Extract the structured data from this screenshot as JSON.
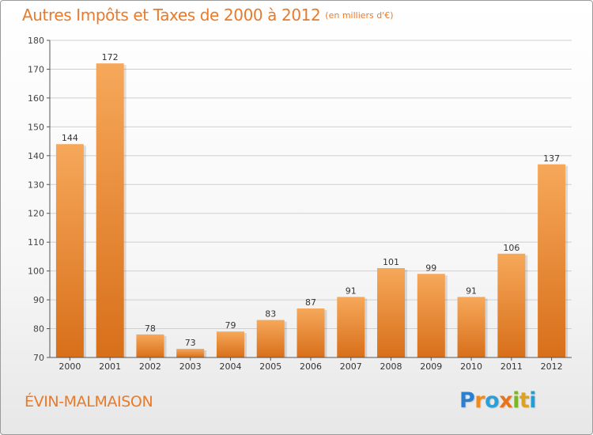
{
  "title": "Autres Impôts et Taxes de 2000 à 2012",
  "title_unit": "(en milliers d'€)",
  "commune": "ÉVIN-MALMAISON",
  "logo": [
    "P",
    "r",
    "o",
    "x",
    "i",
    "t",
    "i"
  ],
  "colors": {
    "accent": "#e87a2a",
    "bar_top": "#f6a85a",
    "bar_bottom": "#d86f1a"
  },
  "chart_data": {
    "type": "bar",
    "categories": [
      "2000",
      "2001",
      "2002",
      "2003",
      "2004",
      "2005",
      "2006",
      "2007",
      "2008",
      "2009",
      "2010",
      "2011",
      "2012"
    ],
    "values": [
      144,
      172,
      78,
      73,
      79,
      83,
      87,
      91,
      101,
      99,
      91,
      106,
      137
    ],
    "ylim": [
      70,
      180
    ],
    "yticks": [
      70,
      80,
      90,
      100,
      110,
      120,
      130,
      140,
      150,
      160,
      170,
      180
    ],
    "grid": true
  }
}
